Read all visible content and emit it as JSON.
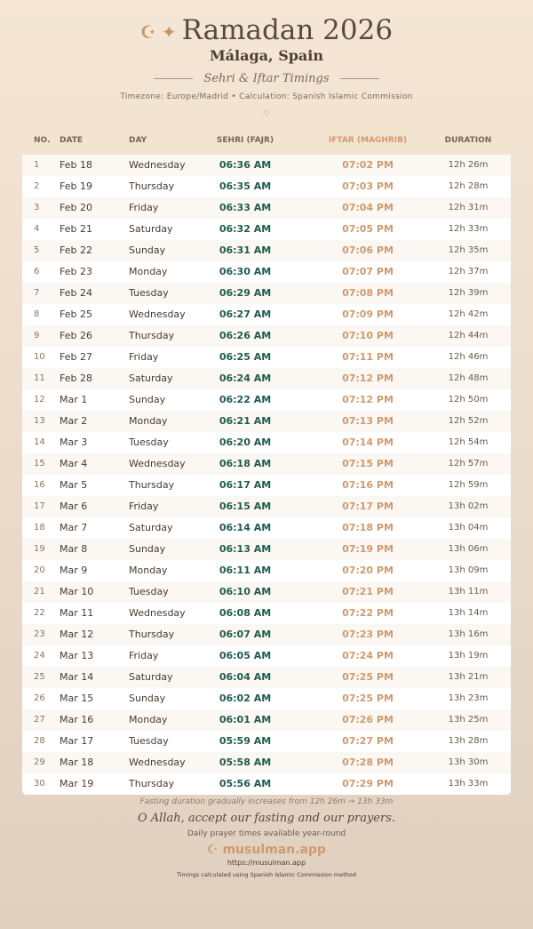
{
  "header": {
    "title": "Ramadan 2026",
    "city": "Málaga, Spain",
    "subtitle": "Sehri & Iftar Timings",
    "meta": "Timezone: Europe/Madrid • Calculation: Spanish Islamic Commission",
    "moon_icon": "☪",
    "star_icon": "✦",
    "divider_icon": "◇"
  },
  "table": {
    "headers": [
      "NO.",
      "DATE",
      "DAY",
      "SEHRI (FAJR)",
      "IFTAR (MAGHRIB)",
      "DURATION"
    ],
    "rows": [
      [
        "1",
        "Feb 18",
        "Wednesday",
        "06:36 AM",
        "07:02 PM",
        "12h 26m"
      ],
      [
        "2",
        "Feb 19",
        "Thursday",
        "06:35 AM",
        "07:03 PM",
        "12h 28m"
      ],
      [
        "3",
        "Feb 20",
        "Friday",
        "06:33 AM",
        "07:04 PM",
        "12h 31m"
      ],
      [
        "4",
        "Feb 21",
        "Saturday",
        "06:32 AM",
        "07:05 PM",
        "12h 33m"
      ],
      [
        "5",
        "Feb 22",
        "Sunday",
        "06:31 AM",
        "07:06 PM",
        "12h 35m"
      ],
      [
        "6",
        "Feb 23",
        "Monday",
        "06:30 AM",
        "07:07 PM",
        "12h 37m"
      ],
      [
        "7",
        "Feb 24",
        "Tuesday",
        "06:29 AM",
        "07:08 PM",
        "12h 39m"
      ],
      [
        "8",
        "Feb 25",
        "Wednesday",
        "06:27 AM",
        "07:09 PM",
        "12h 42m"
      ],
      [
        "9",
        "Feb 26",
        "Thursday",
        "06:26 AM",
        "07:10 PM",
        "12h 44m"
      ],
      [
        "10",
        "Feb 27",
        "Friday",
        "06:25 AM",
        "07:11 PM",
        "12h 46m"
      ],
      [
        "11",
        "Feb 28",
        "Saturday",
        "06:24 AM",
        "07:12 PM",
        "12h 48m"
      ],
      [
        "12",
        "Mar 1",
        "Sunday",
        "06:22 AM",
        "07:12 PM",
        "12h 50m"
      ],
      [
        "13",
        "Mar 2",
        "Monday",
        "06:21 AM",
        "07:13 PM",
        "12h 52m"
      ],
      [
        "14",
        "Mar 3",
        "Tuesday",
        "06:20 AM",
        "07:14 PM",
        "12h 54m"
      ],
      [
        "15",
        "Mar 4",
        "Wednesday",
        "06:18 AM",
        "07:15 PM",
        "12h 57m"
      ],
      [
        "16",
        "Mar 5",
        "Thursday",
        "06:17 AM",
        "07:16 PM",
        "12h 59m"
      ],
      [
        "17",
        "Mar 6",
        "Friday",
        "06:15 AM",
        "07:17 PM",
        "13h 02m"
      ],
      [
        "18",
        "Mar 7",
        "Saturday",
        "06:14 AM",
        "07:18 PM",
        "13h 04m"
      ],
      [
        "19",
        "Mar 8",
        "Sunday",
        "06:13 AM",
        "07:19 PM",
        "13h 06m"
      ],
      [
        "20",
        "Mar 9",
        "Monday",
        "06:11 AM",
        "07:20 PM",
        "13h 09m"
      ],
      [
        "21",
        "Mar 10",
        "Tuesday",
        "06:10 AM",
        "07:21 PM",
        "13h 11m"
      ],
      [
        "22",
        "Mar 11",
        "Wednesday",
        "06:08 AM",
        "07:22 PM",
        "13h 14m"
      ],
      [
        "23",
        "Mar 12",
        "Thursday",
        "06:07 AM",
        "07:23 PM",
        "13h 16m"
      ],
      [
        "24",
        "Mar 13",
        "Friday",
        "06:05 AM",
        "07:24 PM",
        "13h 19m"
      ],
      [
        "25",
        "Mar 14",
        "Saturday",
        "06:04 AM",
        "07:25 PM",
        "13h 21m"
      ],
      [
        "26",
        "Mar 15",
        "Sunday",
        "06:02 AM",
        "07:25 PM",
        "13h 23m"
      ],
      [
        "27",
        "Mar 16",
        "Monday",
        "06:01 AM",
        "07:26 PM",
        "13h 25m"
      ],
      [
        "28",
        "Mar 17",
        "Tuesday",
        "05:59 AM",
        "07:27 PM",
        "13h 28m"
      ],
      [
        "29",
        "Mar 18",
        "Wednesday",
        "05:58 AM",
        "07:28 PM",
        "13h 30m"
      ],
      [
        "30",
        "Mar 19",
        "Thursday",
        "05:56 AM",
        "07:29 PM",
        "13h 33m"
      ]
    ]
  },
  "footer": {
    "note": "Fasting duration gradually increases from 12h 26m → 13h 33m",
    "dua": "O Allah, accept our fasting and our prayers.",
    "tagline": "Daily prayer times available year-round",
    "brand": "☪ musulman.app",
    "url": "https://musulman.app",
    "method": "Timings calculated using Spanish Islamic Commission method"
  },
  "colors": {
    "sehri": "#1f5a4e",
    "iftar": "#cf9a6f"
  }
}
